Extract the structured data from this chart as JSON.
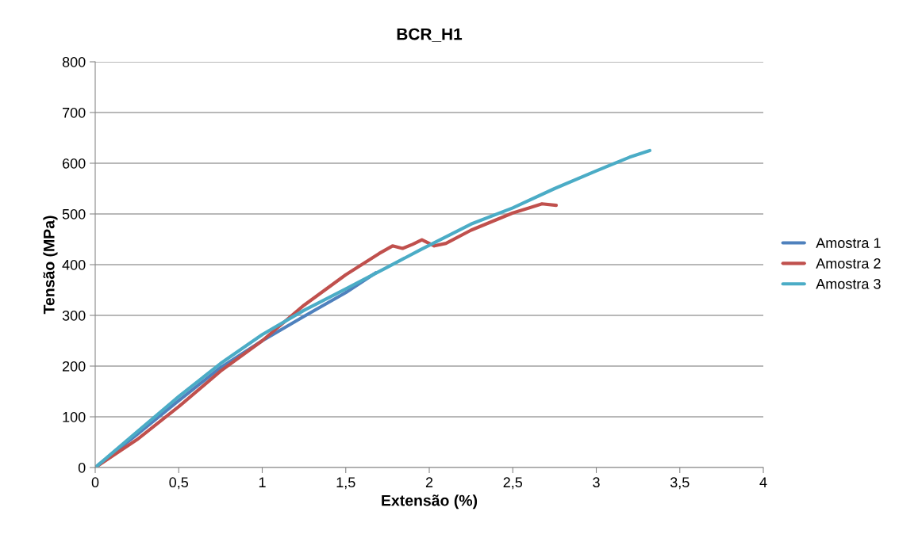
{
  "chart_data": {
    "type": "line",
    "title": "BCR_H1",
    "xlabel": "Extensão (%)",
    "ylabel": "Tensão (MPa)",
    "xlim": [
      0,
      4
    ],
    "xticks": [
      0,
      {
        "value": 0.5,
        "label": "0,5"
      },
      1,
      {
        "value": 1.5,
        "label": "1,5"
      },
      2,
      {
        "value": 2.5,
        "label": "2,5"
      },
      3,
      {
        "value": 3.5,
        "label": "3,5"
      },
      4
    ],
    "ylim": [
      0,
      800
    ],
    "yticks": [
      0,
      100,
      200,
      300,
      400,
      500,
      600,
      700,
      800
    ],
    "grid": "y",
    "legend": "right",
    "marker": "none",
    "line_style": "solid",
    "series": [
      {
        "name": "Amostra 1",
        "color": "#4f81bd",
        "x": [
          0,
          0.25,
          0.5,
          0.75,
          1.0,
          1.25,
          1.5,
          1.68
        ],
        "values": [
          0,
          65,
          132,
          197,
          250,
          298,
          345,
          384
        ]
      },
      {
        "name": "Amostra 2",
        "color": "#c0504d",
        "x": [
          0,
          0.25,
          0.5,
          0.75,
          1.0,
          1.25,
          1.5,
          1.7,
          1.78,
          1.84,
          1.9,
          1.956,
          2.03,
          2.1,
          2.25,
          2.5,
          2.6,
          2.675,
          2.76
        ],
        "values": [
          0,
          55,
          120,
          190,
          250,
          320,
          380,
          422,
          437,
          432,
          440,
          449,
          437,
          442,
          468,
          502,
          512,
          520,
          517
        ]
      },
      {
        "name": "Amostra 3",
        "color": "#4bacc6",
        "x": [
          0,
          0.25,
          0.5,
          0.75,
          1.0,
          1.25,
          1.5,
          1.75,
          1.95,
          2.1,
          2.25,
          2.5,
          2.75,
          3.0,
          3.2,
          3.32
        ],
        "values": [
          0,
          70,
          140,
          205,
          262,
          310,
          352,
          395,
          430,
          455,
          480,
          512,
          550,
          585,
          612,
          625
        ]
      }
    ]
  }
}
